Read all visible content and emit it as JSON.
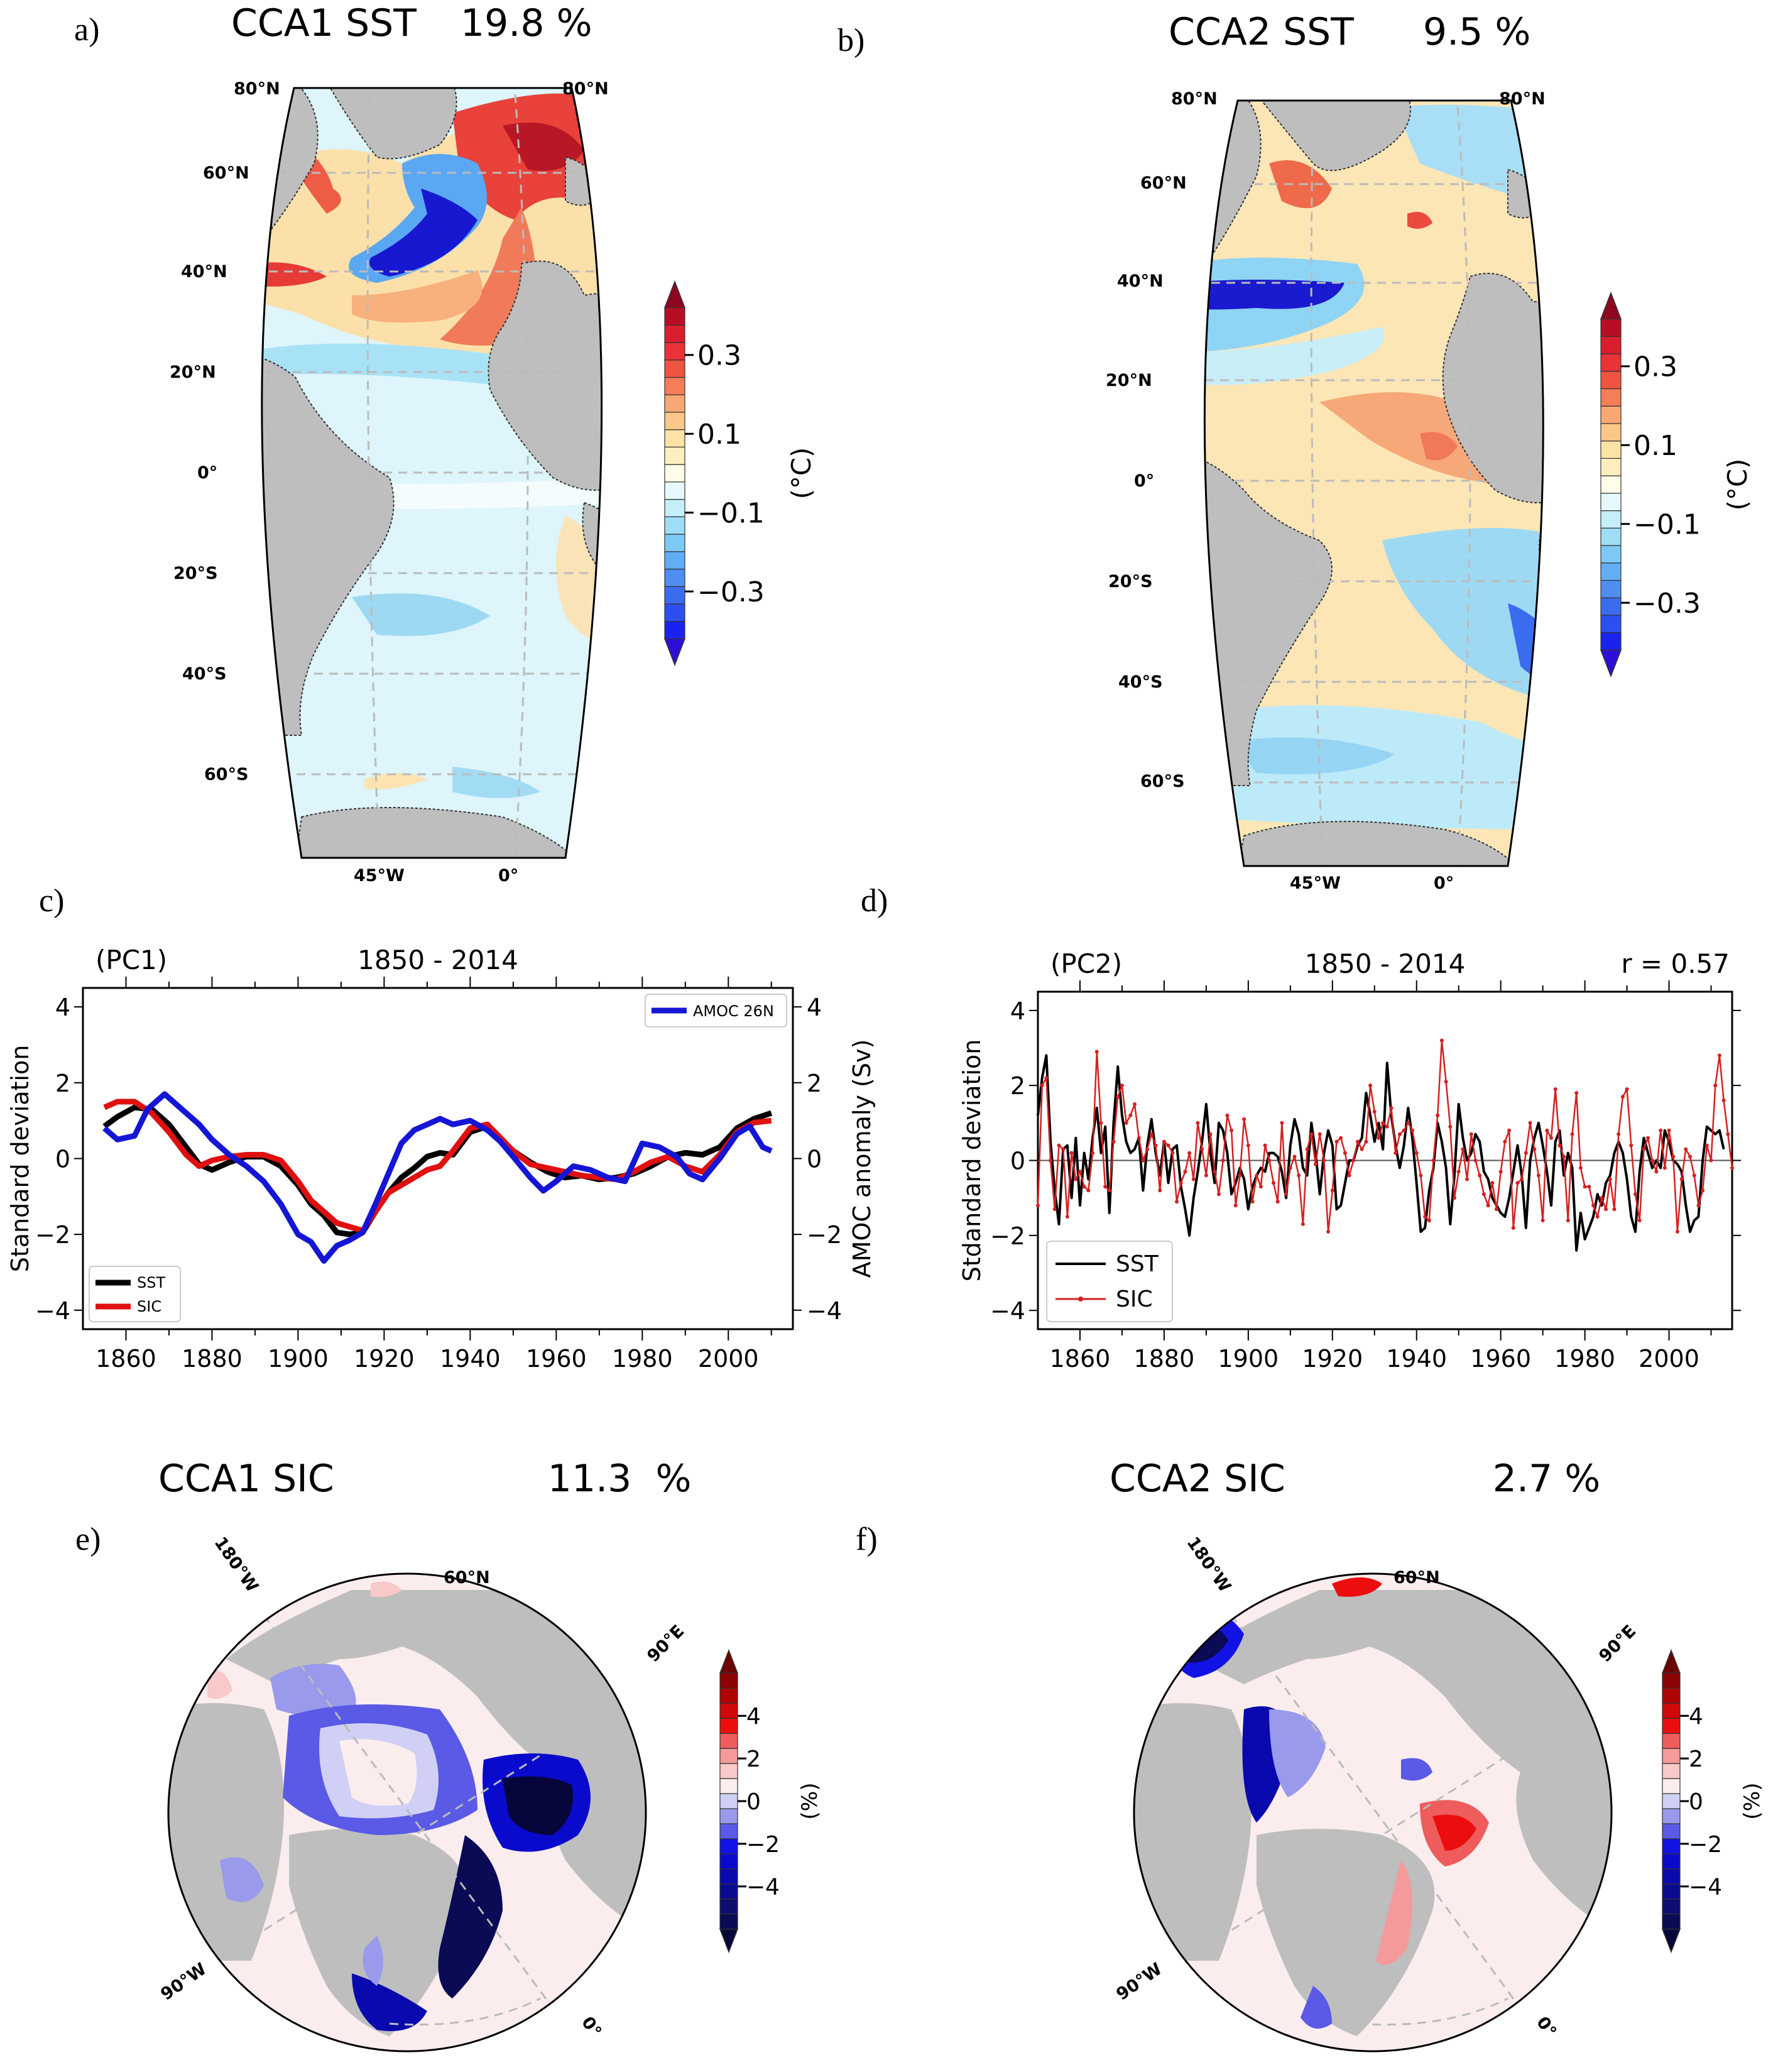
{
  "figure": {
    "panels": {
      "a": {
        "letter": "a)",
        "title": "CCA1 SST",
        "percent": "19.8 %"
      },
      "b": {
        "letter": "b)",
        "title": "CCA2 SST",
        "percent": "9.5 %"
      },
      "c": {
        "letter": "c)"
      },
      "d": {
        "letter": "d)"
      },
      "e": {
        "letter": "e)",
        "title": "CCA1 SIC",
        "percent": "11.3  %"
      },
      "f": {
        "letter": "f)",
        "title": "CCA2 SIC",
        "percent": "2.7 %"
      }
    },
    "map_labels": {
      "lat": [
        "80°N",
        "60°N",
        "40°N",
        "20°N",
        "0°",
        "20°S",
        "40°S",
        "60°S"
      ],
      "lat_top_right": "80°N",
      "lon": [
        "45°W",
        "0°"
      ],
      "polar": {
        "lon180": "180°W",
        "lat60": "60°N",
        "lon90e": "90°E",
        "lon90w": "90°W",
        "lon0": "0°"
      }
    },
    "colorbars": {
      "sst": {
        "unit": "(°C)",
        "ticks": [
          "0.3",
          "0.1",
          "−0.1",
          "−0.3"
        ],
        "tick_values": [
          0.3,
          0.1,
          -0.1,
          -0.3
        ],
        "range": [
          -0.42,
          0.42
        ],
        "levels": [
          "#2B0FD8",
          "#1A22F0",
          "#2E4FF0",
          "#3C6CEE",
          "#4F8DF2",
          "#62AEF6",
          "#7CC9F5",
          "#9FDDF6",
          "#C4EEF8",
          "#E6F8FB",
          "#FFFDE8",
          "#FFEFC0",
          "#FDE2A6",
          "#FCC88A",
          "#F9A874",
          "#F57D58",
          "#EF5443",
          "#E93338",
          "#DA1E2E",
          "#B80E24",
          "#8E0620"
        ]
      },
      "sic": {
        "unit": "(%)",
        "ticks": [
          "4",
          "2",
          "0",
          "−2",
          "−4"
        ],
        "tick_values": [
          4,
          2,
          0,
          -2,
          -4
        ],
        "range": [
          -6,
          6
        ],
        "levels": [
          "#06063A",
          "#0A0A55",
          "#0D0D72",
          "#0B0B8F",
          "#0909AE",
          "#0A0ACC",
          "#1212E4",
          "#5A5AE6",
          "#9A9AEC",
          "#D0D0F6",
          "#FBEDED",
          "#F9C8C8",
          "#F49A9A",
          "#EE5C5C",
          "#EC0E0E",
          "#D00808",
          "#AE0404",
          "#8D0303",
          "#6E0202"
        ]
      }
    }
  },
  "chart_data": [
    {
      "id": "c",
      "type": "line",
      "title_left": "(PC1)",
      "title_center": "1850 - 2014",
      "xlabel": "",
      "ylabel": "Standard deviation",
      "ylabel_right": "AMOC anomaly (Sv)",
      "xlim": [
        1850,
        2015
      ],
      "ylim": [
        -4.5,
        4.5
      ],
      "ylim_right": [
        -4.5,
        4.5
      ],
      "xticks": [
        1860,
        1880,
        1900,
        1920,
        1940,
        1960,
        1980,
        2000
      ],
      "yticks": [
        4,
        2,
        0,
        -2,
        -4
      ],
      "yticks_right": [
        4,
        2,
        0,
        -2,
        -4
      ],
      "ytick_labels": [
        "4",
        "2",
        "0",
        "−2",
        "−4"
      ],
      "legend": {
        "right_axis": {
          "placement": "top-right",
          "entries": [
            "AMOC 26N"
          ]
        },
        "left_axis": {
          "placement": "bottom-left",
          "entries": [
            "SST",
            "SIC"
          ]
        }
      },
      "series": [
        {
          "name": "SST",
          "color": "#000000",
          "smoothed": true,
          "x": [
            1855,
            1858,
            1862,
            1866,
            1870,
            1874,
            1877,
            1880,
            1884,
            1888,
            1892,
            1896,
            1900,
            1903,
            1906,
            1909,
            1912,
            1915,
            1918,
            1921,
            1924,
            1927,
            1930,
            1933,
            1936,
            1940,
            1944,
            1947,
            1950,
            1954,
            1958,
            1962,
            1966,
            1970,
            1974,
            1978,
            1982,
            1986,
            1990,
            1994,
            1998,
            2002,
            2006,
            2010
          ],
          "y": [
            0.85,
            1.1,
            1.35,
            1.3,
            0.9,
            0.3,
            -0.15,
            -0.3,
            -0.1,
            0.05,
            0.05,
            -0.2,
            -0.7,
            -1.2,
            -1.5,
            -1.95,
            -2.0,
            -1.95,
            -1.4,
            -0.9,
            -0.5,
            -0.25,
            0.05,
            0.15,
            0.1,
            0.7,
            0.85,
            0.5,
            0.2,
            -0.1,
            -0.35,
            -0.5,
            -0.45,
            -0.55,
            -0.5,
            -0.4,
            -0.2,
            0.05,
            0.15,
            0.1,
            0.3,
            0.8,
            1.05,
            1.2
          ]
        },
        {
          "name": "SIC",
          "color": "#E01010",
          "smoothed": true,
          "x": [
            1855,
            1858,
            1862,
            1866,
            1870,
            1874,
            1877,
            1880,
            1884,
            1888,
            1892,
            1896,
            1900,
            1903,
            1906,
            1909,
            1912,
            1915,
            1918,
            1921,
            1924,
            1927,
            1930,
            1933,
            1936,
            1940,
            1944,
            1947,
            1950,
            1954,
            1958,
            1962,
            1966,
            1970,
            1974,
            1978,
            1982,
            1986,
            1990,
            1994,
            1998,
            2002,
            2006,
            2010
          ],
          "y": [
            1.35,
            1.5,
            1.5,
            1.2,
            0.7,
            0.1,
            -0.2,
            -0.05,
            0.05,
            0.1,
            0.1,
            -0.05,
            -0.6,
            -1.1,
            -1.4,
            -1.7,
            -1.8,
            -1.9,
            -1.4,
            -0.9,
            -0.7,
            -0.5,
            -0.3,
            -0.2,
            0.2,
            0.8,
            0.9,
            0.55,
            0.2,
            -0.15,
            -0.25,
            -0.35,
            -0.45,
            -0.5,
            -0.55,
            -0.35,
            -0.1,
            0.05,
            -0.2,
            -0.35,
            0.1,
            0.7,
            0.95,
            1.0
          ]
        },
        {
          "name": "AMOC 26N",
          "color": "#1515D5",
          "smoothed": true,
          "axis": "right",
          "x": [
            1855,
            1858,
            1862,
            1865,
            1869,
            1873,
            1877,
            1880,
            1884,
            1888,
            1892,
            1896,
            1900,
            1903,
            1906,
            1909,
            1912,
            1915,
            1918,
            1921,
            1924,
            1927,
            1930,
            1933,
            1936,
            1940,
            1944,
            1947,
            1950,
            1954,
            1957,
            1960,
            1964,
            1968,
            1972,
            1976,
            1980,
            1984,
            1988,
            1991,
            1994,
            1998,
            2002,
            2005,
            2008,
            2010
          ],
          "y": [
            0.8,
            0.5,
            0.6,
            1.3,
            1.7,
            1.3,
            0.9,
            0.5,
            0.1,
            -0.2,
            -0.6,
            -1.2,
            -2.0,
            -2.2,
            -2.7,
            -2.3,
            -2.15,
            -1.95,
            -1.2,
            -0.4,
            0.4,
            0.75,
            0.9,
            1.05,
            0.9,
            1.0,
            0.75,
            0.45,
            0.05,
            -0.5,
            -0.85,
            -0.6,
            -0.2,
            -0.3,
            -0.5,
            -0.6,
            0.4,
            0.3,
            0.05,
            -0.4,
            -0.55,
            0.0,
            0.65,
            0.85,
            0.3,
            0.2
          ]
        }
      ]
    },
    {
      "id": "d",
      "type": "line",
      "title_left": "(PC2)",
      "title_center": "1850 - 2014",
      "annotation": "r = 0.57",
      "xlabel": "",
      "ylabel": "Stdandard deviation",
      "xlim": [
        1850,
        2015
      ],
      "ylim": [
        -4.5,
        4.5
      ],
      "xticks": [
        1860,
        1880,
        1900,
        1920,
        1940,
        1960,
        1980,
        2000
      ],
      "yticks": [
        4,
        2,
        0,
        -2,
        -4
      ],
      "ytick_labels": [
        "4",
        "2",
        "0",
        "−2",
        "−4"
      ],
      "hline": 0,
      "legend": {
        "placement": "bottom-left",
        "entries": [
          "SST",
          "SIC"
        ]
      },
      "series": [
        {
          "name": "SST",
          "color": "#000000",
          "marker": false,
          "x_start": 1850,
          "y": [
            1.2,
            2.2,
            2.8,
            0.5,
            -0.8,
            -1.7,
            0.3,
            0.4,
            -1.0,
            0.6,
            -1.2,
            0.2,
            -0.5,
            0.6,
            1.4,
            0.2,
            0.9,
            -1.4,
            1.0,
            2.5,
            1.2,
            0.5,
            0.2,
            0.3,
            0.6,
            -0.8,
            0.4,
            1.1,
            0.2,
            -0.4,
            0.5,
            -0.6,
            0.3,
            0.4,
            -0.7,
            -1.3,
            -2.0,
            -1.0,
            -0.3,
            0.5,
            1.5,
            0.2,
            -0.6,
            1.0,
            0.8,
            0.2,
            -0.9,
            -0.6,
            -0.2,
            -0.5,
            -1.3,
            -0.7,
            -0.4,
            -0.2,
            -0.3,
            0.2,
            0.2,
            0.1,
            -0.3,
            -1.0,
            0.4,
            1.1,
            0.7,
            -0.2,
            -0.4,
            1.0,
            0.2,
            -0.9,
            0.2,
            0.8,
            0.4,
            -1.3,
            -1.2,
            -0.6,
            0.0,
            0.0,
            0.4,
            0.6,
            1.8,
            1.2,
            0.5,
            1.0,
            0.3,
            2.6,
            1.2,
            0.4,
            -0.2,
            0.4,
            1.4,
            0.6,
            -0.6,
            -1.9,
            -1.8,
            -0.8,
            -0.2,
            1.0,
            0.5,
            -0.2,
            -1.7,
            -0.4,
            1.5,
            0.6,
            0.0,
            0.2,
            0.7,
            0.5,
            -0.3,
            -0.5,
            -1.0,
            -1.2,
            -1.4,
            -1.5,
            -1.0,
            -0.3,
            0.4,
            -0.4,
            -1.8,
            0.0,
            0.6,
            1.0,
            0.4,
            -0.3,
            -1.2,
            0.5,
            0.8,
            -0.4,
            0.2,
            -0.2,
            -2.4,
            -1.4,
            -2.1,
            -1.8,
            -1.5,
            -0.9,
            -1.2,
            -0.6,
            -0.4,
            0.2,
            0.5,
            0.2,
            -0.5,
            -1.5,
            -1.9,
            -0.3,
            0.6,
            0.2,
            -0.2,
            0.0,
            -0.2,
            0.8,
            0.5,
            0.0,
            -0.1,
            -0.3,
            -1.2,
            -1.9,
            -1.6,
            -1.5,
            0.0,
            0.9,
            0.8,
            0.7,
            0.8,
            0.3
          ]
        },
        {
          "name": "SIC",
          "color": "#D42020",
          "marker": true,
          "x_start": 1850,
          "y": [
            -1.2,
            2.0,
            2.2,
            0.0,
            -1.3,
            0.4,
            0.3,
            -1.5,
            0.2,
            -0.5,
            -0.3,
            -0.7,
            -0.8,
            0.2,
            2.9,
            1.0,
            -0.7,
            -0.8,
            0.5,
            1.7,
            2.0,
            1.0,
            1.2,
            1.5,
            0.6,
            0.0,
            0.3,
            0.7,
            0.4,
            -0.8,
            0.5,
            0.4,
            0.2,
            -1.1,
            -0.6,
            -0.3,
            0.2,
            -0.5,
            1.0,
            0.3,
            -0.4,
            0.7,
            -0.3,
            -0.9,
            0.0,
            1.2,
            0.8,
            -1.2,
            -0.4,
            1.1,
            0.4,
            -1.1,
            -0.4,
            -0.7,
            0.4,
            0.0,
            -0.6,
            -1.1,
            1.0,
            -0.9,
            -0.2,
            0.1,
            -0.4,
            -1.7,
            0.3,
            0.7,
            -0.1,
            0.7,
            0.0,
            -1.9,
            -0.8,
            0.5,
            0.6,
            0.2,
            -0.4,
            0.0,
            0.5,
            0.3,
            0.5,
            2.0,
            1.3,
            0.6,
            1.0,
            0.9,
            1.4,
            0.2,
            0.7,
            0.8,
            1.0,
            0.8,
            0.2,
            -0.4,
            -1.5,
            -1.6,
            0.0,
            1.2,
            3.2,
            2.1,
            0.9,
            -1.0,
            -0.3,
            0.3,
            -0.5,
            0.7,
            0.0,
            -0.4,
            -0.9,
            -1.2,
            -0.6,
            -1.3,
            -0.3,
            0.5,
            0.8,
            -1.8,
            -0.6,
            -0.5,
            0.2,
            1.0,
            0.3,
            -0.4,
            -1.6,
            0.8,
            0.6,
            1.9,
            0.4,
            0.1,
            -1.6,
            0.7,
            1.8,
            -0.2,
            -0.7,
            -0.7,
            -1.2,
            -1.5,
            -1.0,
            -1.3,
            -0.5,
            -1.3,
            0.7,
            1.7,
            1.9,
            0.4,
            -0.9,
            -1.6,
            0.3,
            0.6,
            0.0,
            -0.3,
            0.8,
            -0.2,
            0.8,
            0.1,
            -1.9,
            -0.5,
            0.3,
            0.1,
            -0.4,
            -1.2,
            -0.8,
            0.4,
            0.0,
            2.0,
            2.8,
            1.6,
            0.7,
            -0.2
          ]
        }
      ]
    }
  ]
}
